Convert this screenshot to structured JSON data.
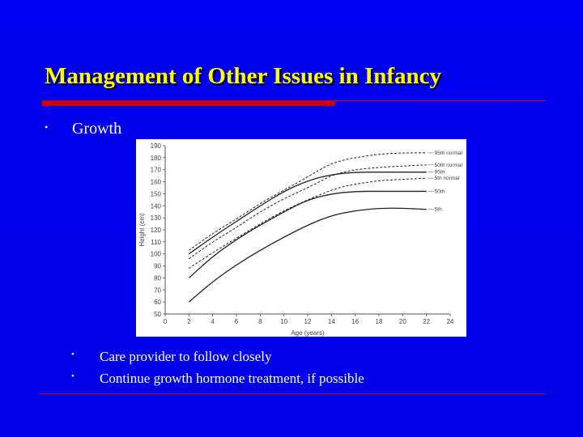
{
  "slide": {
    "title": "Management of Other Issues in Infancy",
    "bullet": "•",
    "main_bullet": "Growth",
    "sub_bullets": [
      "Care provider to follow closely",
      "Continue growth hormone treatment, if possible"
    ]
  },
  "colors": {
    "background": "#0000ee",
    "title": "#ffff00",
    "rule": "#cc0000",
    "text": "#ffffff"
  },
  "chart_data": {
    "type": "line",
    "xlabel": "Age (years)",
    "ylabel": "Height (cm)",
    "xlim": [
      0,
      24
    ],
    "ylim": [
      50,
      190
    ],
    "xticks": [
      0,
      2,
      4,
      6,
      8,
      10,
      12,
      14,
      16,
      18,
      20,
      22,
      24
    ],
    "yticks": [
      50,
      60,
      70,
      80,
      90,
      100,
      110,
      120,
      130,
      140,
      150,
      160,
      170,
      180,
      190
    ],
    "grid": false,
    "series": [
      {
        "name": "95th normal",
        "style": "dashed",
        "x": [
          2,
          4,
          6,
          8,
          10,
          12,
          13,
          14,
          15,
          16,
          18,
          20,
          22
        ],
        "y": [
          103,
          117,
          129,
          142,
          153,
          164,
          170,
          175,
          178,
          180,
          183,
          184,
          184
        ]
      },
      {
        "name": "50th normal",
        "style": "dashed",
        "x": [
          2,
          4,
          6,
          8,
          10,
          12,
          13,
          14,
          15,
          16,
          18,
          20,
          22
        ],
        "y": [
          96,
          110,
          122,
          135,
          146,
          155,
          160,
          165,
          168,
          170,
          172,
          173,
          174
        ]
      },
      {
        "name": "5th normal",
        "style": "dashed",
        "x": [
          2,
          4,
          6,
          8,
          10,
          12,
          13,
          14,
          15,
          16,
          18,
          20,
          22
        ],
        "y": [
          88,
          101,
          113,
          125,
          136,
          145,
          149,
          153,
          156,
          158,
          161,
          162,
          163
        ]
      },
      {
        "name": "95th",
        "style": "solid",
        "x": [
          2,
          4,
          6,
          8,
          10,
          12,
          14,
          16,
          18,
          20,
          22
        ],
        "y": [
          100,
          114,
          127,
          140,
          152,
          161,
          166,
          168,
          168,
          168,
          168
        ]
      },
      {
        "name": "50th",
        "style": "solid",
        "x": [
          2,
          4,
          6,
          8,
          10,
          12,
          14,
          16,
          18,
          20,
          22
        ],
        "y": [
          80,
          98,
          112,
          124,
          135,
          145,
          150,
          152,
          152,
          152,
          152
        ]
      },
      {
        "name": "5th",
        "style": "solid",
        "x": [
          2,
          4,
          6,
          8,
          10,
          12,
          14,
          16,
          18,
          20,
          22
        ],
        "y": [
          60,
          77,
          91,
          103,
          114,
          124,
          132,
          136,
          138,
          138,
          137
        ]
      }
    ]
  }
}
